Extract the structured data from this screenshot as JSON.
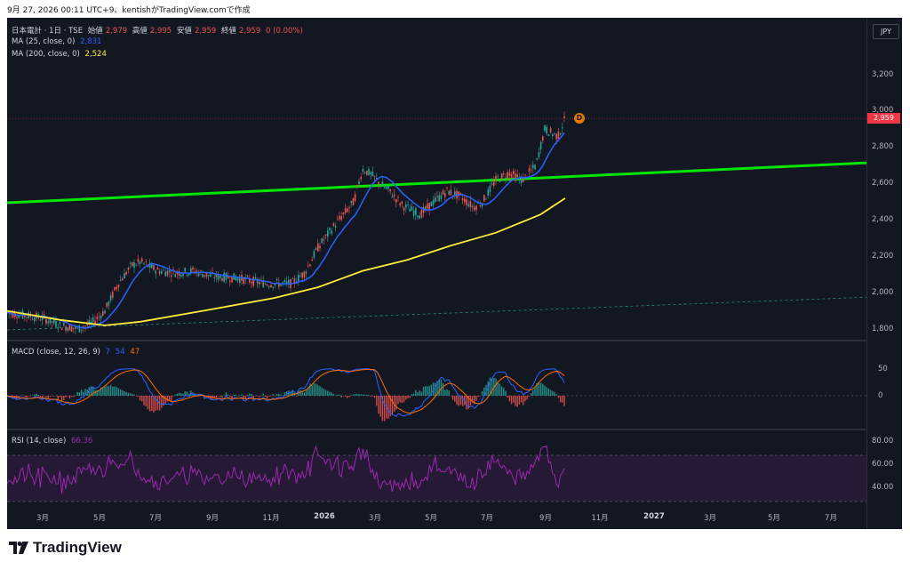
{
  "caption": "9月 27, 2026 00:11 UTC+9、kentishがTradingView.comで作成",
  "currency_button": "JPY",
  "main_legend": {
    "symbol": "日本電計 · 1日 · TSE",
    "open_label": "始値",
    "open": "2,979",
    "high_label": "高値",
    "high": "2,995",
    "low_label": "安値",
    "low": "2,959",
    "close_label": "終値",
    "close": "2,959",
    "change": "0 (0.00%)"
  },
  "ma25_legend": {
    "label": "MA (25, close, 0)",
    "value": "2,831"
  },
  "ma200_legend": {
    "label": "MA (200, close, 0)",
    "value": "2,524"
  },
  "macd_legend": {
    "label": "MACD (close, 12, 26, 9)",
    "v1": "7",
    "v2": "54",
    "v3": "47"
  },
  "rsi_legend": {
    "label": "RSI (14, close)",
    "value": "66.36"
  },
  "last_price_tag": "2,959",
  "dividend_marker": "D",
  "price_axis": [
    "3,200",
    "3,000",
    "2,800",
    "2,600",
    "2,400",
    "2,200",
    "2,000",
    "1,800"
  ],
  "macd_axis": [
    "50",
    "0"
  ],
  "rsi_axis": [
    "80.00",
    "60.00",
    "40.00"
  ],
  "time_axis": [
    {
      "label": "3月",
      "bold": false
    },
    {
      "label": "5月",
      "bold": false
    },
    {
      "label": "7月",
      "bold": false
    },
    {
      "label": "9月",
      "bold": false
    },
    {
      "label": "11月",
      "bold": false
    },
    {
      "label": "2026",
      "bold": true
    },
    {
      "label": "3月",
      "bold": false
    },
    {
      "label": "5月",
      "bold": false
    },
    {
      "label": "7月",
      "bold": false
    },
    {
      "label": "9月",
      "bold": false
    },
    {
      "label": "11月",
      "bold": false
    },
    {
      "label": "2027",
      "bold": true
    },
    {
      "label": "3月",
      "bold": false
    },
    {
      "label": "5月",
      "bold": false
    },
    {
      "label": "7月",
      "bold": false
    }
  ],
  "brand": "TradingView",
  "colors": {
    "background": "#131722",
    "up": "#26a69a",
    "down": "#ef5350",
    "ma25": "#2962ff",
    "ma200": "#ffeb3b",
    "trendline": "#00e600",
    "macd_signal": "#ff6d00",
    "rsi": "#9c27b0",
    "last_price": "#f23645"
  }
}
